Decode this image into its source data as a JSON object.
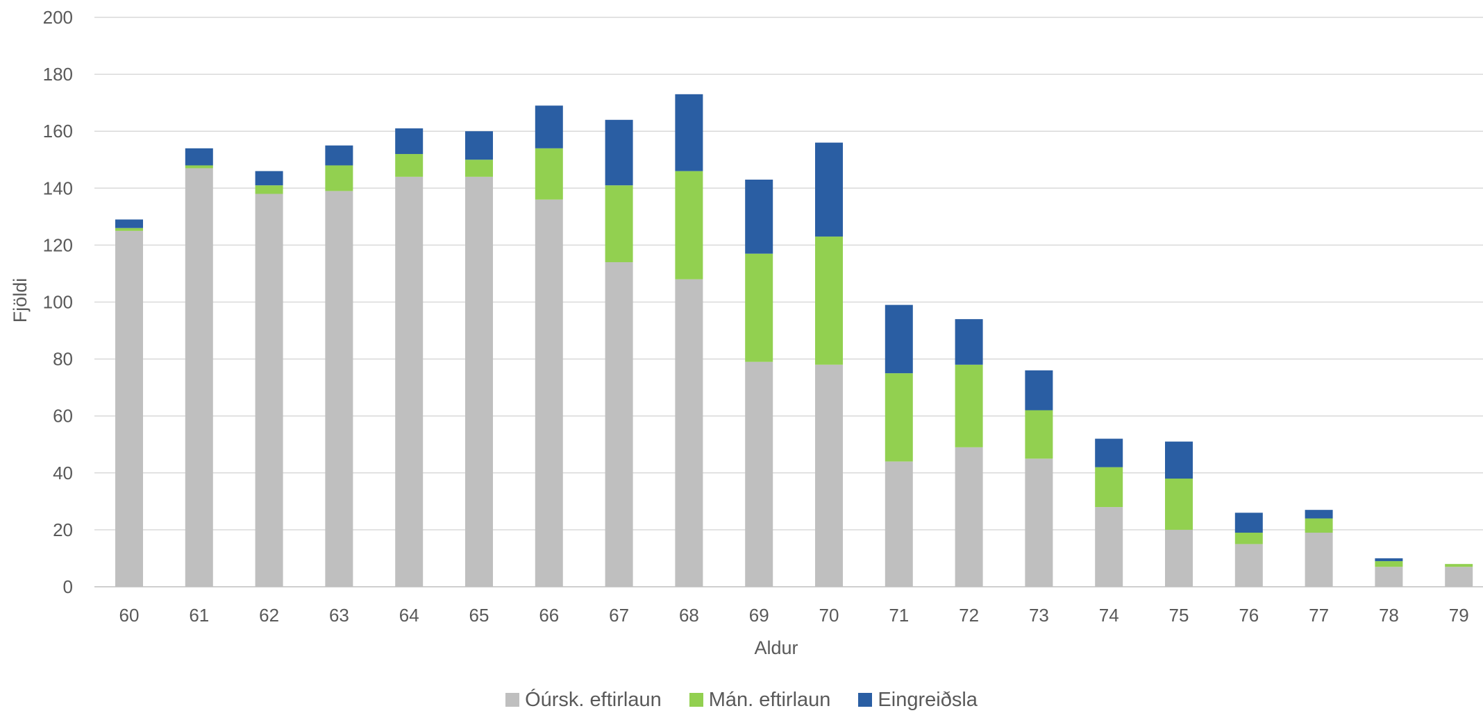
{
  "chart_data": {
    "type": "bar",
    "stacked": true,
    "title": "",
    "xlabel": "Aldur",
    "ylabel": "Fjöldi",
    "ylim": [
      0,
      200
    ],
    "y_ticks": [
      "0",
      "20",
      "40",
      "60",
      "80",
      "100",
      "120",
      "140",
      "160",
      "180",
      "200"
    ],
    "grid": true,
    "legend_position": "bottom",
    "categories": [
      "60",
      "61",
      "62",
      "63",
      "64",
      "65",
      "66",
      "67",
      "68",
      "69",
      "70",
      "71",
      "72",
      "73",
      "74",
      "75",
      "76",
      "77",
      "78",
      "79"
    ],
    "series": [
      {
        "name": "Óúrsk. eftirlaun",
        "color": "#bfbfbf",
        "values": [
          125,
          147,
          138,
          139,
          144,
          144,
          136,
          114,
          108,
          79,
          78,
          44,
          49,
          45,
          28,
          20,
          15,
          19,
          7,
          7
        ]
      },
      {
        "name": "Mán. eftirlaun",
        "color": "#92d050",
        "values": [
          1,
          1,
          3,
          9,
          8,
          6,
          18,
          27,
          38,
          38,
          45,
          31,
          29,
          17,
          14,
          18,
          4,
          5,
          2,
          1
        ]
      },
      {
        "name": "Eingreiðsla",
        "color": "#2a5ea3",
        "values": [
          3,
          6,
          5,
          7,
          9,
          10,
          15,
          23,
          27,
          26,
          33,
          24,
          16,
          14,
          10,
          13,
          7,
          3,
          1,
          0
        ]
      }
    ]
  }
}
